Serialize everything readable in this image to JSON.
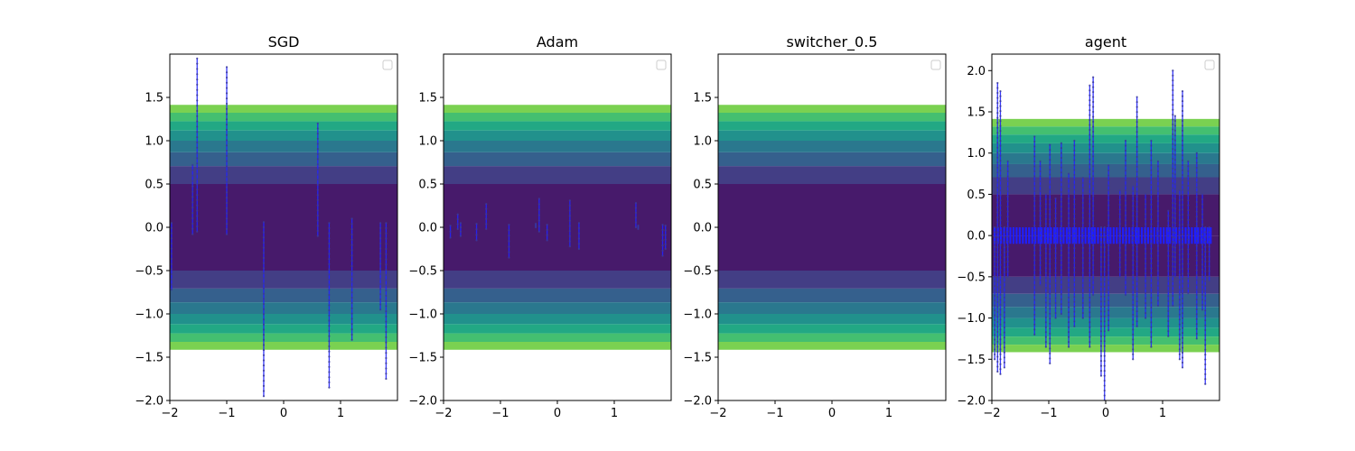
{
  "chart_data": [
    {
      "type": "contour-trajectory",
      "title": "SGD",
      "xlim": [
        -2,
        2
      ],
      "ylim": [
        -2,
        2
      ],
      "xticks": [
        -2,
        -1,
        0,
        1
      ],
      "xtick_labels": [
        "−2",
        "−1",
        "0",
        "1"
      ],
      "yticks": [
        -2,
        -1.5,
        -1,
        -0.5,
        0,
        0.5,
        1,
        1.5
      ],
      "ytick_labels": [
        "−2.0",
        "−1.5",
        "−1.0",
        "−0.5",
        "0.0",
        "0.5",
        "1.0",
        "1.5"
      ],
      "contour_levels": [
        0,
        0.25,
        0.5,
        0.75,
        1.0,
        1.25,
        1.5,
        1.75,
        2.0
      ],
      "contour_colors": [
        "#471a6b",
        "#433e85",
        "#35608d",
        "#2a788e",
        "#21918c",
        "#22a884",
        "#44bf70",
        "#7ad151",
        "#d7e21a"
      ],
      "legend": "top-right",
      "trajectories": [
        {
          "x": -1.97,
          "y_start": 0.05,
          "y_end": -0.72
        },
        {
          "x": -1.6,
          "y_start": 0.72,
          "y_end": -0.08
        },
        {
          "x": -1.52,
          "y_start": 1.95,
          "y_end": -0.05
        },
        {
          "x": -1.0,
          "y_start": 1.85,
          "y_end": -0.08
        },
        {
          "x": -0.35,
          "y_start": 0.06,
          "y_end": -1.95
        },
        {
          "x": 0.6,
          "y_start": 1.2,
          "y_end": -0.1
        },
        {
          "x": 0.8,
          "y_start": 0.05,
          "y_end": -1.85
        },
        {
          "x": 1.2,
          "y_start": 0.1,
          "y_end": -1.3
        },
        {
          "x": 1.7,
          "y_start": 0.05,
          "y_end": -0.95
        },
        {
          "x": 1.8,
          "y_start": 0.05,
          "y_end": -1.75
        }
      ]
    },
    {
      "type": "contour-trajectory",
      "title": "Adam",
      "xlim": [
        -2,
        2
      ],
      "ylim": [
        -2,
        2
      ],
      "xticks": [
        -2,
        -1,
        0,
        1
      ],
      "xtick_labels": [
        "−2",
        "−1",
        "0",
        "1"
      ],
      "yticks": [
        -2,
        -1.5,
        -1,
        -0.5,
        0,
        0.5,
        1,
        1.5
      ],
      "ytick_labels": [
        "−2.0",
        "−1.5",
        "−1.0",
        "−0.5",
        "0.0",
        "0.5",
        "1.0",
        "1.5"
      ],
      "contour_levels": [
        0,
        0.25,
        0.5,
        0.75,
        1.0,
        1.25,
        1.5,
        1.75,
        2.0
      ],
      "contour_colors": [
        "#471a6b",
        "#433e85",
        "#35608d",
        "#2a788e",
        "#21918c",
        "#22a884",
        "#44bf70",
        "#7ad151",
        "#d7e21a"
      ],
      "legend": "top-right",
      "trajectories": [
        {
          "x": -1.88,
          "y_start": 0.02,
          "y_end": -0.12
        },
        {
          "x": -1.75,
          "y_start": 0.15,
          "y_end": -0.02
        },
        {
          "x": -1.7,
          "y_start": 0.05,
          "y_end": -0.1
        },
        {
          "x": -1.42,
          "y_start": 0.04,
          "y_end": -0.15
        },
        {
          "x": -1.25,
          "y_start": 0.27,
          "y_end": -0.02
        },
        {
          "x": -0.85,
          "y_start": 0.03,
          "y_end": -0.35
        },
        {
          "x": -0.38,
          "y_start": 0.04,
          "y_end": 0.0
        },
        {
          "x": -0.32,
          "y_start": 0.33,
          "y_end": -0.05
        },
        {
          "x": -0.18,
          "y_start": 0.03,
          "y_end": -0.15
        },
        {
          "x": 0.22,
          "y_start": 0.31,
          "y_end": -0.22
        },
        {
          "x": 0.38,
          "y_start": 0.05,
          "y_end": -0.25
        },
        {
          "x": 1.38,
          "y_start": 0.28,
          "y_end": 0.0
        },
        {
          "x": 1.42,
          "y_start": 0.02,
          "y_end": -0.02
        },
        {
          "x": 1.85,
          "y_start": 0.03,
          "y_end": -0.33
        },
        {
          "x": 1.9,
          "y_start": 0.02,
          "y_end": -0.25
        }
      ]
    },
    {
      "type": "contour-trajectory",
      "title": "switcher_0.5",
      "xlim": [
        -2,
        2
      ],
      "ylim": [
        -2,
        2
      ],
      "xticks": [
        -2,
        -1,
        0,
        1
      ],
      "xtick_labels": [
        "−2",
        "−1",
        "0",
        "1"
      ],
      "yticks": [
        -2,
        -1.5,
        -1,
        -0.5,
        0,
        0.5,
        1,
        1.5
      ],
      "ytick_labels": [
        "−2.0",
        "−1.5",
        "−1.0",
        "−0.5",
        "0.0",
        "0.5",
        "1.0",
        "1.5"
      ],
      "contour_levels": [
        0,
        0.25,
        0.5,
        0.75,
        1.0,
        1.25,
        1.5,
        1.75,
        2.0
      ],
      "contour_colors": [
        "#471a6b",
        "#433e85",
        "#35608d",
        "#2a788e",
        "#21918c",
        "#22a884",
        "#44bf70",
        "#7ad151",
        "#d7e21a"
      ],
      "legend": "top-right",
      "trajectories": []
    },
    {
      "type": "contour-trajectory",
      "title": "agent",
      "xlim": [
        -2,
        2
      ],
      "ylim": [
        -2,
        2.2
      ],
      "xticks": [
        -2,
        -1,
        0,
        1
      ],
      "xtick_labels": [
        "−2",
        "−1",
        "0",
        "1"
      ],
      "yticks": [
        -2,
        -1.5,
        -1,
        -0.5,
        0,
        0.5,
        1,
        1.5,
        2
      ],
      "ytick_labels": [
        "−2.0",
        "−1.5",
        "−1.0",
        "−0.5",
        "0.0",
        "0.5",
        "1.0",
        "1.5",
        "2.0"
      ],
      "contour_levels": [
        0,
        0.25,
        0.5,
        0.75,
        1.0,
        1.25,
        1.5,
        1.75,
        2.0
      ],
      "contour_colors": [
        "#471a6b",
        "#433e85",
        "#35608d",
        "#2a788e",
        "#21918c",
        "#22a884",
        "#44bf70",
        "#7ad151",
        "#d7e21a"
      ],
      "legend": "top-right",
      "band": {
        "y_min": -0.1,
        "y_max": 0.1,
        "x_start": -1.95,
        "x_end": 1.85,
        "x_step": 0.055
      },
      "trajectories": [
        {
          "x": -1.95,
          "y_start": 0.1,
          "y_end": -1.5
        },
        {
          "x": -1.9,
          "y_start": 1.85,
          "y_end": -1.65
        },
        {
          "x": -1.85,
          "y_start": 1.75,
          "y_end": -1.68
        },
        {
          "x": -1.78,
          "y_start": 0.1,
          "y_end": -1.6
        },
        {
          "x": -1.72,
          "y_start": 0.9,
          "y_end": -0.5
        },
        {
          "x": -1.25,
          "y_start": 1.2,
          "y_end": -1.2
        },
        {
          "x": -1.15,
          "y_start": 0.9,
          "y_end": -0.6
        },
        {
          "x": -1.05,
          "y_start": 0.5,
          "y_end": -1.35
        },
        {
          "x": -0.98,
          "y_start": 1.1,
          "y_end": -1.55
        },
        {
          "x": -0.88,
          "y_start": 0.45,
          "y_end": -1.0
        },
        {
          "x": -0.78,
          "y_start": 1.12,
          "y_end": -0.95
        },
        {
          "x": -0.65,
          "y_start": 0.75,
          "y_end": -1.35
        },
        {
          "x": -0.55,
          "y_start": 1.15,
          "y_end": -1.1
        },
        {
          "x": -0.4,
          "y_start": 0.7,
          "y_end": -1.0
        },
        {
          "x": -0.28,
          "y_start": 1.82,
          "y_end": -1.35
        },
        {
          "x": -0.22,
          "y_start": 1.92,
          "y_end": -0.72
        },
        {
          "x": -0.08,
          "y_start": 0.1,
          "y_end": -1.7
        },
        {
          "x": -0.02,
          "y_start": 0.1,
          "y_end": -2.0
        },
        {
          "x": 0.05,
          "y_start": 0.85,
          "y_end": -1.15
        },
        {
          "x": 0.25,
          "y_start": 0.55,
          "y_end": -0.5
        },
        {
          "x": 0.35,
          "y_start": 1.15,
          "y_end": -0.72
        },
        {
          "x": 0.48,
          "y_start": 0.6,
          "y_end": -1.5
        },
        {
          "x": 0.55,
          "y_start": 1.68,
          "y_end": -1.1
        },
        {
          "x": 0.7,
          "y_start": 0.5,
          "y_end": -1.0
        },
        {
          "x": 0.8,
          "y_start": 1.15,
          "y_end": -1.35
        },
        {
          "x": 0.92,
          "y_start": 0.9,
          "y_end": -0.85
        },
        {
          "x": 1.1,
          "y_start": 0.3,
          "y_end": -1.22
        },
        {
          "x": 1.18,
          "y_start": 2.0,
          "y_end": -0.85
        },
        {
          "x": 1.22,
          "y_start": 1.45,
          "y_end": -0.5
        },
        {
          "x": 1.3,
          "y_start": 0.55,
          "y_end": -1.5
        },
        {
          "x": 1.35,
          "y_start": 1.75,
          "y_end": -1.6
        },
        {
          "x": 1.45,
          "y_start": 0.9,
          "y_end": -0.7
        },
        {
          "x": 1.6,
          "y_start": 1.0,
          "y_end": -1.25
        },
        {
          "x": 1.7,
          "y_start": 0.5,
          "y_end": -0.9
        },
        {
          "x": 1.75,
          "y_start": 0.1,
          "y_end": -1.8
        },
        {
          "x": 1.82,
          "y_start": 0.1,
          "y_end": -0.55
        }
      ]
    }
  ]
}
